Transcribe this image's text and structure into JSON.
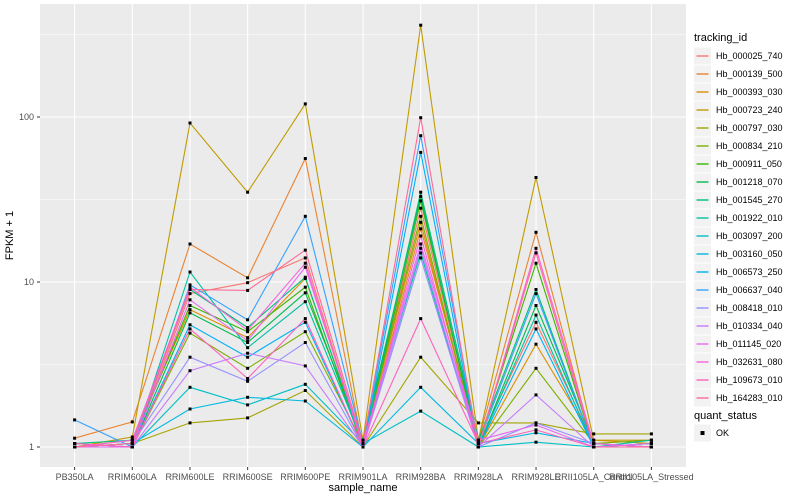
{
  "colors": {
    "panel_bg": "#EBEBEB",
    "grid": "#FFFFFF",
    "tick": "#333333",
    "tick_label": "#4D4D4D",
    "text": "#000000",
    "legend_key_bg": "#F2F2F2",
    "marker": "#000000"
  },
  "chart_data": {
    "type": "line",
    "title": "",
    "xlabel": "sample_name",
    "ylabel": "FPKM + 1",
    "y_scale": "log10",
    "ylim": [
      0.76,
      470
    ],
    "y_ticks": [
      "1",
      "10",
      "100"
    ],
    "y_tick_values": [
      1,
      10,
      100
    ],
    "y_minor_values": [
      3.1623,
      31.623,
      316.23
    ],
    "grid": true,
    "legend_position": "right",
    "legend_titles": {
      "series": "tracking_id",
      "shape": "quant_status"
    },
    "quant_status_label": "OK",
    "marker": {
      "shape": "square",
      "color": "#000000"
    },
    "categories": [
      "PB350LA",
      "RRIM600LA",
      "RRIM600LE",
      "RRIM600SE",
      "RRIM600PE",
      "RRIM901LA",
      "RRIM928BA",
      "RRIM928LA",
      "RRIM928LE",
      "RRII105LA_Control",
      "RRII105LA_Stressed"
    ],
    "series": [
      {
        "name": "Hb_000025_740",
        "color": "#F8766D",
        "values": [
          1.05,
          1.0,
          8.5,
          9.9,
          14,
          1.0,
          28,
          1.05,
          5.7,
          1.05,
          1.0
        ]
      },
      {
        "name": "Hb_000139_500",
        "color": "#EA8331",
        "values": [
          1.13,
          1.42,
          17,
          10.6,
          56,
          1.0,
          21,
          1.1,
          20,
          1.0,
          1.0
        ]
      },
      {
        "name": "Hb_000393_030",
        "color": "#D89000",
        "values": [
          1.0,
          1.1,
          6.8,
          4.6,
          10.5,
          1.05,
          23,
          1.0,
          4.2,
          1.1,
          1.05
        ]
      },
      {
        "name": "Hb_000723_240",
        "color": "#C09B00",
        "values": [
          1.0,
          1.15,
          92,
          35,
          120,
          1.1,
          360,
          1.1,
          43,
          1.1,
          1.1
        ]
      },
      {
        "name": "Hb_000797_030",
        "color": "#A3A500",
        "values": [
          1.0,
          1.05,
          1.4,
          1.5,
          2.2,
          1.0,
          3.5,
          1.4,
          1.4,
          1.2,
          1.2
        ]
      },
      {
        "name": "Hb_000834_210",
        "color": "#7CAE00",
        "values": [
          1.05,
          1.0,
          4.9,
          3.0,
          5.0,
          1.05,
          25,
          1.0,
          3.0,
          1.05,
          1.1
        ]
      },
      {
        "name": "Hb_000911_050",
        "color": "#39B600",
        "values": [
          1.0,
          1.05,
          7.2,
          5.0,
          9.3,
          1.0,
          31,
          1.05,
          13,
          1.0,
          1.05
        ]
      },
      {
        "name": "Hb_001218_070",
        "color": "#00BB4E",
        "values": [
          1.0,
          1.0,
          6.5,
          4.3,
          8.6,
          1.1,
          33,
          1.0,
          7.2,
          1.05,
          1.0
        ]
      },
      {
        "name": "Hb_001545_270",
        "color": "#00BF7D",
        "values": [
          1.05,
          1.1,
          9.0,
          5.3,
          10.7,
          1.0,
          35,
          1.1,
          9.0,
          1.0,
          1.0
        ]
      },
      {
        "name": "Hb_001922_010",
        "color": "#00C1A3",
        "values": [
          1.0,
          1.0,
          11.5,
          4.0,
          7.6,
          1.05,
          15,
          1.0,
          6.3,
          1.0,
          1.1
        ]
      },
      {
        "name": "Hb_003097_200",
        "color": "#00BFC4",
        "values": [
          1.05,
          1.0,
          2.3,
          1.8,
          2.4,
          1.05,
          1.65,
          1.0,
          1.07,
          1.0,
          1.0
        ]
      },
      {
        "name": "Hb_003160_050",
        "color": "#00BAE0",
        "values": [
          1.0,
          1.05,
          1.7,
          2.0,
          1.9,
          1.0,
          2.3,
          1.05,
          1.22,
          1.05,
          1.0
        ]
      },
      {
        "name": "Hb_006573_250",
        "color": "#00B0F6",
        "values": [
          1.0,
          1.0,
          5.5,
          3.5,
          5.7,
          1.0,
          61,
          1.0,
          5.2,
          1.0,
          1.05
        ]
      },
      {
        "name": "Hb_006637_040",
        "color": "#35A2FF",
        "values": [
          1.46,
          1.0,
          9.6,
          5.9,
          25,
          1.05,
          77,
          1.05,
          8.5,
          1.0,
          1.0
        ]
      },
      {
        "name": "Hb_008418_010",
        "color": "#9590FF",
        "values": [
          1.0,
          1.05,
          3.5,
          2.5,
          4.3,
          1.0,
          14,
          1.0,
          1.4,
          1.05,
          1.0
        ]
      },
      {
        "name": "Hb_010334_040",
        "color": "#C77CFF",
        "values": [
          1.05,
          1.0,
          2.9,
          3.7,
          3.1,
          1.0,
          16,
          1.0,
          2.07,
          1.0,
          1.0
        ]
      },
      {
        "name": "Hb_011145_020",
        "color": "#E76BF3",
        "values": [
          1.0,
          1.0,
          7.8,
          4.4,
          12.3,
          1.05,
          17,
          1.1,
          1.36,
          1.0,
          1.05
        ]
      },
      {
        "name": "Hb_032631_080",
        "color": "#FA62DB",
        "values": [
          1.0,
          1.1,
          9.3,
          5.1,
          13,
          1.0,
          19,
          1.0,
          16,
          1.05,
          1.0
        ]
      },
      {
        "name": "Hb_109673_010",
        "color": "#FF62BC",
        "values": [
          1.05,
          1.0,
          5.2,
          2.6,
          6.0,
          1.0,
          6.0,
          1.05,
          1.27,
          1.0,
          1.0
        ]
      },
      {
        "name": "Hb_164283_010",
        "color": "#FF6A98",
        "values": [
          1.0,
          1.05,
          9.0,
          8.9,
          15.6,
          1.05,
          99,
          1.0,
          15,
          1.0,
          1.0
        ]
      }
    ]
  }
}
